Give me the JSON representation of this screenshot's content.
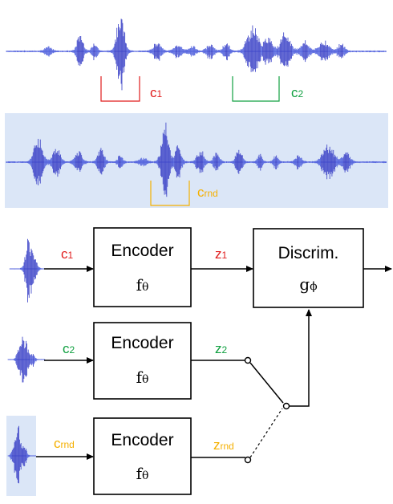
{
  "colors": {
    "red": "#e01b1b",
    "green": "#10a040",
    "yellow": "#f5b000",
    "wave": "#5060dd",
    "wave_dark": "#3e45c8",
    "panel": "#dbe6f7"
  },
  "top_waveform": {
    "chunk1": {
      "main": "c",
      "sub": "1"
    },
    "chunk2": {
      "main": "c",
      "sub": "2"
    }
  },
  "mid_waveform": {
    "chunk_rnd": {
      "main": "c",
      "sub": "rnd"
    }
  },
  "rows": [
    {
      "input": {
        "main": "c",
        "sub": "1"
      },
      "encoder": {
        "title": "Encoder",
        "fn_main": "f",
        "fn_sub": "θ"
      },
      "output": {
        "main": "z",
        "sub": "1"
      }
    },
    {
      "input": {
        "main": "c",
        "sub": "2"
      },
      "encoder": {
        "title": "Encoder",
        "fn_main": "f",
        "fn_sub": "θ"
      },
      "output": {
        "main": "z",
        "sub": "2"
      }
    },
    {
      "input": {
        "main": "c",
        "sub": "rnd"
      },
      "encoder": {
        "title": "Encoder",
        "fn_main": "f",
        "fn_sub": "θ"
      },
      "output": {
        "main": "z",
        "sub": "rnd"
      }
    }
  ],
  "discriminator": {
    "title": "Discrim.",
    "fn_main": "g",
    "fn_sub": "ϕ"
  }
}
